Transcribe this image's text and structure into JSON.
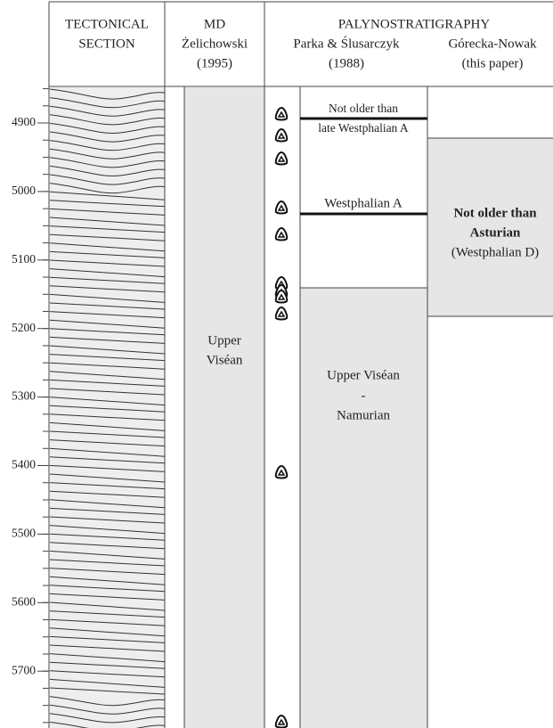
{
  "header": {
    "tectonical_section": [
      "TECTONICAL",
      "SECTION"
    ],
    "md": [
      "MD",
      "Żelichowski",
      "(1995)"
    ],
    "palynostratigraphy": "PALYNOSTRATIGRAPHY",
    "parka": [
      "Parka & Ślusarczyk",
      "(1988)"
    ],
    "gorecka": [
      "Górecka-Nowak",
      "(this paper)"
    ]
  },
  "depth_ticks": [
    "4900",
    "5000",
    "5100",
    "5200",
    "5300",
    "5400",
    "5500",
    "5600",
    "5700"
  ],
  "md_unit": [
    "Upper",
    "Viséan"
  ],
  "parka_units": {
    "top": [
      "Not older than",
      "late Westphalian A"
    ],
    "middle": "Westphalian A",
    "bottom": [
      "Upper Viséan",
      "-",
      "Namurian"
    ]
  },
  "gorecka_unit": [
    "Not older than",
    "Asturian",
    "(Westphalian D)"
  ]
}
